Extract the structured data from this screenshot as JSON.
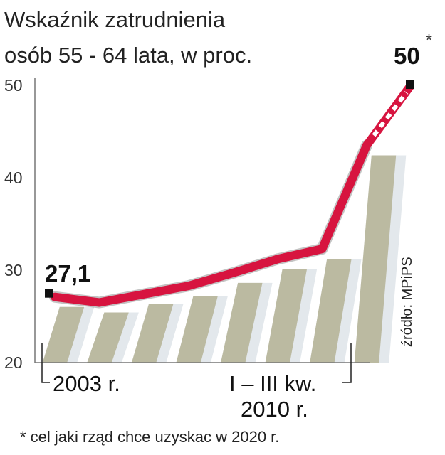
{
  "chart_data": {
    "type": "line",
    "title": "Wskaźnik zatrudnienia",
    "subtitle": "osób 55 - 64 lata, w proc.",
    "yticks": [
      "50",
      "40",
      "30",
      "20"
    ],
    "ylim": [
      20,
      50
    ],
    "series": [
      {
        "values": [
          27.1,
          26.5,
          27.4,
          28.3,
          29.7,
          31.2,
          32.3,
          43.5
        ]
      }
    ],
    "target": {
      "value": 50,
      "label": "50",
      "marker": "*"
    },
    "start_label": "27,1",
    "x_labels": {
      "start": "2003 r.",
      "end_line1": "I – III kw.",
      "end_line2": "2010 r."
    },
    "source": "źródło: MPiPS",
    "footnote": "* cel jaki rząd chce uzyskac w 2020 r.",
    "colors": {
      "line": "#d7143f",
      "marker": "#111111",
      "bar": "#b4b294",
      "column_light": "#e3e8ec",
      "band": "#dde4ea"
    }
  }
}
